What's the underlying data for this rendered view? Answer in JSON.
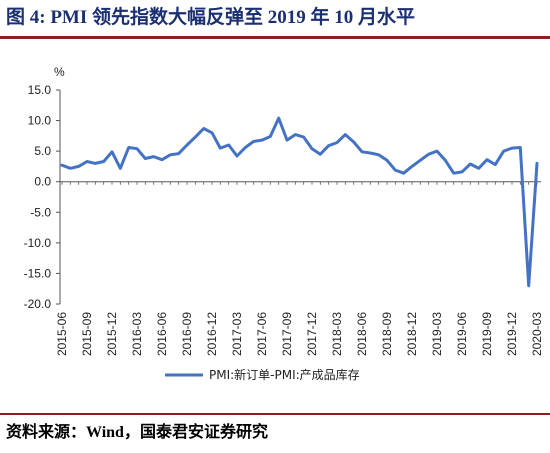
{
  "figure": {
    "title": "图 4:  PMI 领先指数大幅反弹至 2019 年 10 月水平",
    "source": "资料来源：Wind，国泰君安证券研究"
  },
  "chart_data": {
    "type": "line",
    "ylabel": "%",
    "ylim": [
      -20,
      15
    ],
    "yticks": [
      "15.0",
      "10.0",
      "5.0",
      "0.0",
      "-5.0",
      "-10.0",
      "-15.0",
      "-20.0"
    ],
    "xticks": [
      "2015-06",
      "2015-09",
      "2015-12",
      "2016-03",
      "2016-06",
      "2016-09",
      "2016-12",
      "2017-03",
      "2017-06",
      "2017-09",
      "2017-12",
      "2018-03",
      "2018-06",
      "2018-09",
      "2018-12",
      "2019-03",
      "2019-06",
      "2019-09",
      "2019-12",
      "2020-03"
    ],
    "grid": false,
    "legend_position": "bottom",
    "series_color": "#4472c4",
    "series": [
      {
        "name": "PMI:新订单-PMI:产成品库存",
        "x": [
          "2015-06",
          "2015-07",
          "2015-08",
          "2015-09",
          "2015-10",
          "2015-11",
          "2015-12",
          "2016-01",
          "2016-02",
          "2016-03",
          "2016-04",
          "2016-05",
          "2016-06",
          "2016-07",
          "2016-08",
          "2016-09",
          "2016-10",
          "2016-11",
          "2016-12",
          "2017-01",
          "2017-02",
          "2017-03",
          "2017-04",
          "2017-05",
          "2017-06",
          "2017-07",
          "2017-08",
          "2017-09",
          "2017-10",
          "2017-11",
          "2017-12",
          "2018-01",
          "2018-02",
          "2018-03",
          "2018-04",
          "2018-05",
          "2018-06",
          "2018-07",
          "2018-08",
          "2018-09",
          "2018-10",
          "2018-11",
          "2018-12",
          "2019-01",
          "2019-02",
          "2019-03",
          "2019-04",
          "2019-05",
          "2019-06",
          "2019-07",
          "2019-08",
          "2019-09",
          "2019-10",
          "2019-11",
          "2019-12",
          "2020-01",
          "2020-02",
          "2020-03"
        ],
        "values": [
          2.7,
          2.2,
          2.5,
          3.3,
          3.0,
          3.3,
          4.9,
          2.2,
          5.6,
          5.4,
          3.8,
          4.1,
          3.6,
          4.4,
          4.6,
          6.0,
          7.3,
          8.7,
          8.0,
          5.5,
          6.0,
          4.2,
          5.6,
          6.6,
          6.8,
          7.4,
          10.4,
          6.8,
          7.7,
          7.3,
          5.4,
          4.5,
          5.9,
          6.4,
          7.7,
          6.5,
          4.9,
          4.7,
          4.4,
          3.5,
          1.9,
          1.4,
          2.5,
          3.5,
          4.5,
          5.0,
          3.5,
          1.4,
          1.6,
          2.9,
          2.2,
          3.6,
          2.8,
          5.0,
          5.5,
          5.6,
          -17.0,
          3.0
        ]
      }
    ]
  }
}
